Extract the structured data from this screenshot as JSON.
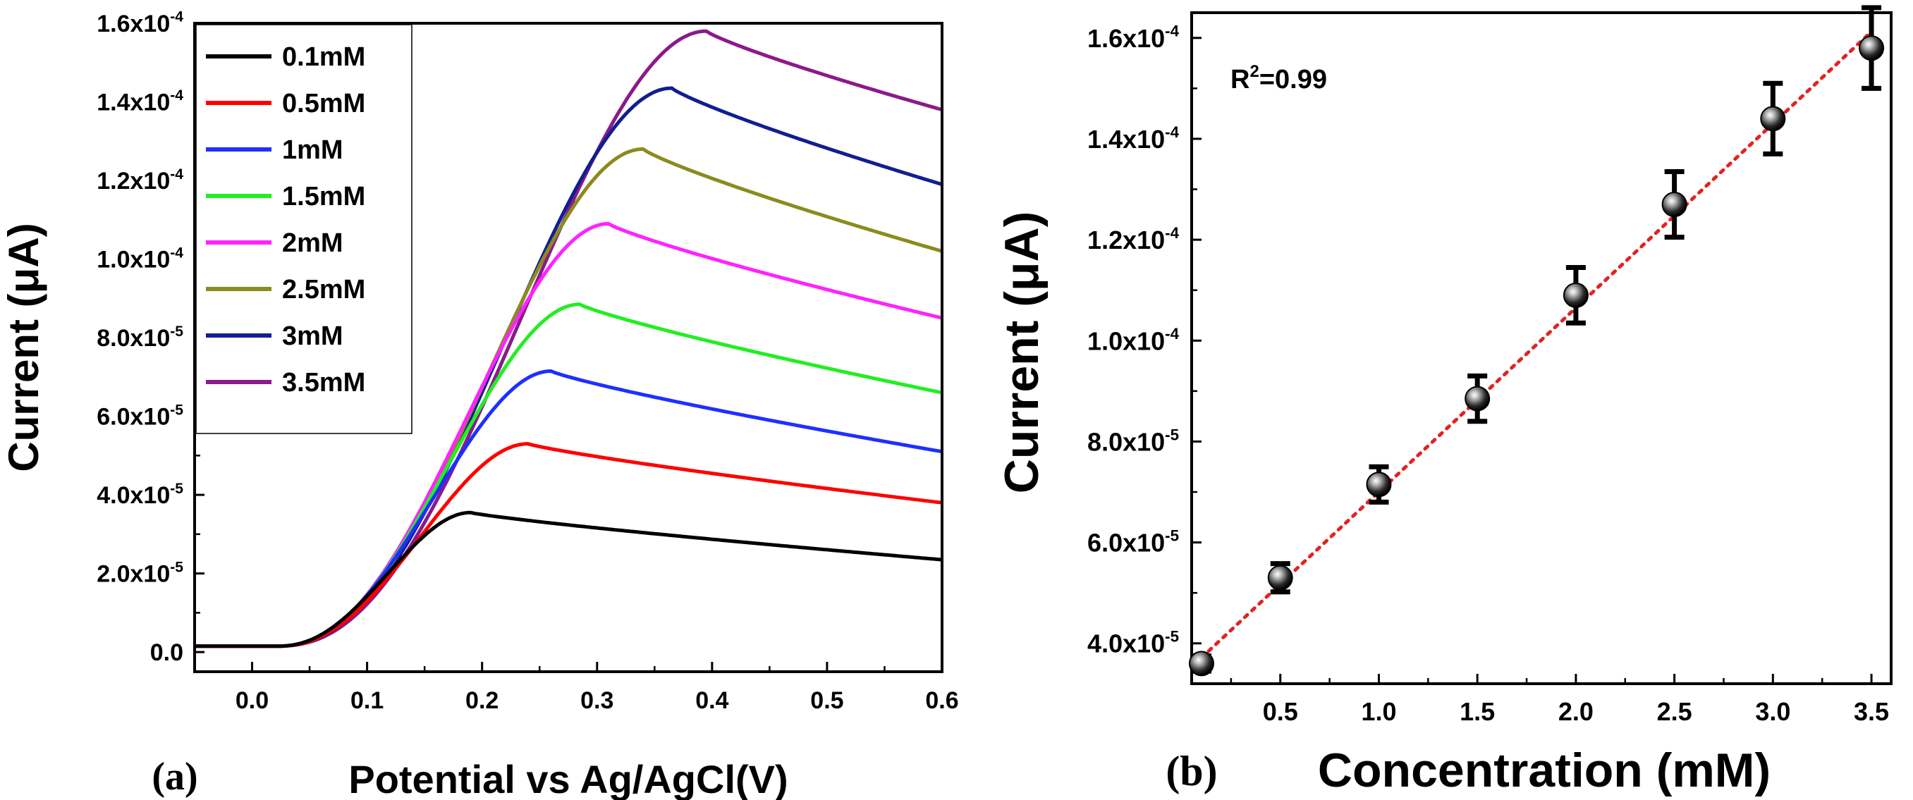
{
  "chart_data": [
    {
      "panel_label": "(a)",
      "type": "line",
      "xlabel": "Potential vs Ag/AgCl(V)",
      "ylabel": "Current (μA)",
      "xlim": [
        -0.05,
        0.6
      ],
      "ylim": [
        -5e-06,
        0.00016
      ],
      "xticks": [
        0.0,
        0.1,
        0.2,
        0.3,
        0.4,
        0.5,
        0.6
      ],
      "xtick_labels": [
        "0.0",
        "0.1",
        "0.2",
        "0.3",
        "0.4",
        "0.5",
        "0.6"
      ],
      "yticks": [
        0,
        2e-05,
        4e-05,
        6e-05,
        8e-05,
        0.0001,
        0.00012,
        0.00014,
        0.00016
      ],
      "ytick_labels": [
        {
          "mant": "0.0",
          "exp": ""
        },
        {
          "mant": "2.0x10",
          "exp": "-5"
        },
        {
          "mant": "4.0x10",
          "exp": "-5"
        },
        {
          "mant": "6.0x10",
          "exp": "-5"
        },
        {
          "mant": "8.0x10",
          "exp": "-5"
        },
        {
          "mant": "1.0x10",
          "exp": "-4"
        },
        {
          "mant": "1.2x10",
          "exp": "-4"
        },
        {
          "mant": "1.4x10",
          "exp": "-4"
        },
        {
          "mant": "1.6x10",
          "exp": "-4"
        }
      ],
      "legend_position": "top-left",
      "series": [
        {
          "name": "0.1mM",
          "color": "#000000",
          "peak_x": 0.19,
          "peak_y": 3.55e-05,
          "end_y": 2.35e-05
        },
        {
          "name": "0.5mM",
          "color": "#ff0000",
          "peak_x": 0.24,
          "peak_y": 5.3e-05,
          "end_y": 3.8e-05
        },
        {
          "name": "1mM",
          "color": "#1f2fff",
          "peak_x": 0.26,
          "peak_y": 7.15e-05,
          "end_y": 5.1e-05
        },
        {
          "name": "1.5mM",
          "color": "#22ee22",
          "peak_x": 0.285,
          "peak_y": 8.85e-05,
          "end_y": 6.6e-05
        },
        {
          "name": "2mM",
          "color": "#ff22ff",
          "peak_x": 0.31,
          "peak_y": 0.000109,
          "end_y": 8.5e-05
        },
        {
          "name": "2.5mM",
          "color": "#8b8b1e",
          "peak_x": 0.34,
          "peak_y": 0.000128,
          "end_y": 0.000102
        },
        {
          "name": "3mM",
          "color": "#101f8f",
          "peak_x": 0.365,
          "peak_y": 0.0001435,
          "end_y": 0.000119
        },
        {
          "name": "3.5mM",
          "color": "#8b1a8b",
          "peak_x": 0.395,
          "peak_y": 0.000158,
          "end_y": 0.000138
        }
      ]
    },
    {
      "panel_label": "(b)",
      "type": "scatter",
      "xlabel": "Concentration (mM)",
      "ylabel": "Current (μA)",
      "annotation": {
        "base": "R",
        "sup": "2",
        "rest": "=0.99"
      },
      "xlim": [
        0.05,
        3.6
      ],
      "ylim": [
        3.2e-05,
        0.000165
      ],
      "xticks": [
        0.5,
        1.0,
        1.5,
        2.0,
        2.5,
        3.0,
        3.5
      ],
      "xtick_labels": [
        "0.5",
        "1.0",
        "1.5",
        "2.0",
        "2.5",
        "3.0",
        "3.5"
      ],
      "yticks": [
        4e-05,
        6e-05,
        8e-05,
        0.0001,
        0.00012,
        0.00014,
        0.00016
      ],
      "ytick_labels": [
        {
          "mant": "4.0x10",
          "exp": "-5"
        },
        {
          "mant": "6.0x10",
          "exp": "-5"
        },
        {
          "mant": "8.0x10",
          "exp": "-5"
        },
        {
          "mant": "1.0x10",
          "exp": "-4"
        },
        {
          "mant": "1.2x10",
          "exp": "-4"
        },
        {
          "mant": "1.4x10",
          "exp": "-4"
        },
        {
          "mant": "1.6x10",
          "exp": "-4"
        }
      ],
      "points": [
        {
          "x": 0.1,
          "y": 3.6e-05,
          "err": 1.5e-06
        },
        {
          "x": 0.5,
          "y": 5.3e-05,
          "err": 2.8e-06
        },
        {
          "x": 1.0,
          "y": 7.15e-05,
          "err": 3.5e-06
        },
        {
          "x": 1.5,
          "y": 8.85e-05,
          "err": 4.5e-06
        },
        {
          "x": 2.0,
          "y": 0.000109,
          "err": 5.5e-06
        },
        {
          "x": 2.5,
          "y": 0.000127,
          "err": 6.5e-06
        },
        {
          "x": 3.0,
          "y": 0.000144,
          "err": 7e-06
        },
        {
          "x": 3.5,
          "y": 0.000158,
          "err": 8e-06
        }
      ],
      "fit": {
        "slope": 3.65e-05,
        "intercept": 3.35e-05,
        "x_range": [
          0.1,
          3.5
        ],
        "color": "#e32222"
      }
    }
  ]
}
